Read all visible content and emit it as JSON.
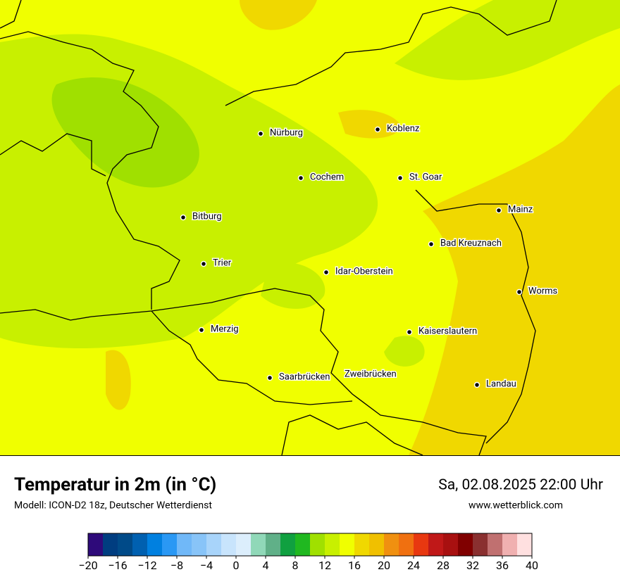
{
  "header": {
    "title": "Temperatur in 2m (in °C)",
    "subtitle": "Modell: ICON-D2 18z, Deutscher Wetterdienst",
    "date": "Sa, 02.08.2025 22:00 Uhr",
    "website": "www.wetterblick.com"
  },
  "cities": [
    "Nürburg",
    "Koblenz",
    "Cochem",
    "St. Goar",
    "Bitburg",
    "Mainz",
    "Bad Kreuznach",
    "Trier",
    "Idar-Oberstein",
    "Worms",
    "Merzig",
    "Kaiserslautern",
    "Saarbrücken",
    "Zweibrücken",
    "Landau"
  ],
  "legend": {
    "range": [
      -20,
      40
    ],
    "colors": [
      "#2e0a7a",
      "#003d80",
      "#004a88",
      "#0060b0",
      "#0080e0",
      "#2a98f4",
      "#70b8f8",
      "#88c4f8",
      "#a8d4fa",
      "#c8e4fc",
      "#dceefc",
      "#90d8b8",
      "#60b088",
      "#10a040",
      "#20b820",
      "#a0e000",
      "#c8f000",
      "#f0ff00",
      "#f0d800",
      "#f0c000",
      "#f09010",
      "#f07010",
      "#e83810",
      "#c01818",
      "#a81010",
      "#800000",
      "#8a3030",
      "#c07070",
      "#f0b0b0",
      "#ffe0e0"
    ],
    "ticks": [
      {
        "value": -20,
        "label": "−20"
      },
      {
        "value": -16,
        "label": "−16"
      },
      {
        "value": -12,
        "label": "−12"
      },
      {
        "value": -8,
        "label": "−8"
      },
      {
        "value": -4,
        "label": "−4"
      },
      0,
      4,
      8,
      12,
      16,
      20,
      24,
      28,
      32,
      36,
      40
    ]
  }
}
